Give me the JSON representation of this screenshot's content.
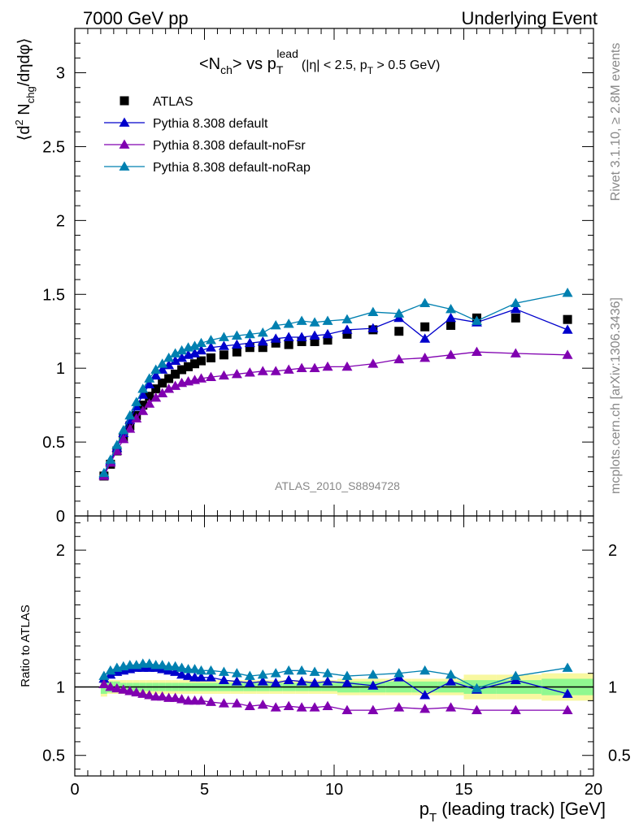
{
  "header": {
    "left": "7000 GeV pp",
    "right": "Underlying Event"
  },
  "side": {
    "rivet": "Rivet 3.1.10, ≥ 2.8M events",
    "mcplots": "mcplots.cern.ch [arXiv:1306.3436]"
  },
  "plot": {
    "title_main": "<N",
    "title_ch": "ch",
    "title_vs": "> vs p",
    "title_T": "T",
    "title_lead": "lead",
    "title_cuts": "(|η| < 2.5, p",
    "title_cuts_T": "T",
    "title_cuts_end": " > 0.5 GeV)",
    "analysis_tag": "ATLAS_2010_S8894728",
    "ylabel_parts": [
      "⟨d",
      "2",
      " N",
      "chg",
      "/dηdφ⟩"
    ],
    "ratio_ylabel": "Ratio to ATLAS",
    "xlabel_main": "p",
    "xlabel_sub": "T",
    "xlabel_rest": " (leading track) [GeV]"
  },
  "colors": {
    "atlas": "#000000",
    "default": "#0000cc",
    "noFsr": "#8000b0",
    "noRap": "#0080b0",
    "band_inner": "#90f890",
    "band_outer": "#f8f8a0"
  },
  "chart_data": {
    "type": "scatter",
    "xlim": [
      0,
      20
    ],
    "ylim": [
      0,
      3.3
    ],
    "ratio_ylim": [
      0.35,
      2.25
    ],
    "x_ticks": [
      "0",
      "5",
      "10",
      "15",
      "20"
    ],
    "y_ticks": [
      "0",
      "0.5",
      "1",
      "1.5",
      "2",
      "2.5",
      "3"
    ],
    "ratio_ticks": [
      "0.5",
      "1",
      "2"
    ],
    "x": [
      1.125,
      1.375,
      1.625,
      1.875,
      2.125,
      2.375,
      2.625,
      2.875,
      3.125,
      3.375,
      3.625,
      3.875,
      4.125,
      4.375,
      4.625,
      4.875,
      5.25,
      5.75,
      6.25,
      6.75,
      7.25,
      7.75,
      8.25,
      8.75,
      9.25,
      9.75,
      10.5,
      11.5,
      12.5,
      13.5,
      14.5,
      15.5,
      17.0,
      19.0
    ],
    "series": [
      {
        "name": "ATLAS",
        "key": "atlas",
        "marker": "square",
        "values": [
          0.27,
          0.35,
          0.44,
          0.53,
          0.61,
          0.68,
          0.75,
          0.81,
          0.86,
          0.9,
          0.93,
          0.96,
          0.99,
          1.01,
          1.03,
          1.05,
          1.07,
          1.09,
          1.11,
          1.14,
          1.14,
          1.17,
          1.16,
          1.18,
          1.18,
          1.19,
          1.23,
          1.26,
          1.25,
          1.28,
          1.29,
          1.34,
          1.34,
          1.33
        ]
      },
      {
        "name": "Pythia 8.308 default",
        "key": "default",
        "marker": "triangle",
        "values": [
          0.28,
          0.37,
          0.46,
          0.56,
          0.65,
          0.74,
          0.82,
          0.89,
          0.95,
          0.99,
          1.02,
          1.05,
          1.07,
          1.09,
          1.1,
          1.12,
          1.14,
          1.15,
          1.16,
          1.17,
          1.18,
          1.2,
          1.21,
          1.21,
          1.22,
          1.23,
          1.26,
          1.27,
          1.34,
          1.2,
          1.34,
          1.31,
          1.4,
          1.26
        ]
      },
      {
        "name": "Pythia 8.308 default-noFsr",
        "key": "noFsr",
        "marker": "triangle",
        "values": [
          0.27,
          0.36,
          0.44,
          0.52,
          0.59,
          0.66,
          0.71,
          0.76,
          0.8,
          0.83,
          0.86,
          0.88,
          0.9,
          0.91,
          0.92,
          0.93,
          0.94,
          0.95,
          0.96,
          0.97,
          0.98,
          0.98,
          0.99,
          1.0,
          1.0,
          1.01,
          1.01,
          1.03,
          1.06,
          1.07,
          1.09,
          1.11,
          1.1,
          1.09
        ]
      },
      {
        "name": "Pythia 8.308 default-noRap",
        "key": "noRap",
        "marker": "triangle",
        "values": [
          0.29,
          0.38,
          0.48,
          0.58,
          0.68,
          0.77,
          0.86,
          0.93,
          0.99,
          1.03,
          1.07,
          1.1,
          1.12,
          1.14,
          1.15,
          1.17,
          1.19,
          1.21,
          1.22,
          1.23,
          1.24,
          1.29,
          1.3,
          1.32,
          1.31,
          1.32,
          1.33,
          1.38,
          1.37,
          1.44,
          1.4,
          1.32,
          1.44,
          1.51
        ]
      }
    ],
    "ratio_series": [
      {
        "key": "default",
        "values": [
          1.06,
          1.09,
          1.11,
          1.12,
          1.13,
          1.14,
          1.14,
          1.14,
          1.14,
          1.13,
          1.12,
          1.11,
          1.09,
          1.08,
          1.07,
          1.07,
          1.07,
          1.05,
          1.04,
          1.03,
          1.04,
          1.03,
          1.05,
          1.04,
          1.03,
          1.04,
          1.03,
          1.01,
          1.07,
          0.94,
          1.04,
          0.98,
          1.05,
          0.95
        ]
      },
      {
        "key": "noFsr",
        "values": [
          1.02,
          1.0,
          0.99,
          0.98,
          0.97,
          0.96,
          0.95,
          0.94,
          0.93,
          0.93,
          0.92,
          0.92,
          0.91,
          0.9,
          0.9,
          0.9,
          0.89,
          0.88,
          0.88,
          0.86,
          0.87,
          0.85,
          0.86,
          0.85,
          0.85,
          0.86,
          0.83,
          0.83,
          0.85,
          0.84,
          0.85,
          0.83,
          0.83,
          0.83
        ]
      },
      {
        "key": "noRap",
        "values": [
          1.08,
          1.12,
          1.14,
          1.15,
          1.16,
          1.16,
          1.17,
          1.17,
          1.16,
          1.16,
          1.15,
          1.15,
          1.14,
          1.13,
          1.13,
          1.12,
          1.12,
          1.11,
          1.1,
          1.08,
          1.09,
          1.1,
          1.12,
          1.12,
          1.11,
          1.1,
          1.08,
          1.09,
          1.1,
          1.12,
          1.09,
          0.99,
          1.08,
          1.14
        ]
      }
    ],
    "band_inner": [
      0.05,
      0.04,
      0.04,
      0.03,
      0.03,
      0.03,
      0.03,
      0.03,
      0.03,
      0.03,
      0.03,
      0.03,
      0.03,
      0.03,
      0.03,
      0.03,
      0.03,
      0.03,
      0.03,
      0.03,
      0.03,
      0.03,
      0.03,
      0.03,
      0.03,
      0.03,
      0.04,
      0.04,
      0.04,
      0.04,
      0.04,
      0.05,
      0.05,
      0.06
    ],
    "band_outer": [
      0.07,
      0.05,
      0.05,
      0.05,
      0.05,
      0.05,
      0.05,
      0.05,
      0.05,
      0.05,
      0.05,
      0.05,
      0.05,
      0.05,
      0.05,
      0.05,
      0.05,
      0.05,
      0.05,
      0.05,
      0.05,
      0.05,
      0.05,
      0.05,
      0.05,
      0.05,
      0.06,
      0.06,
      0.06,
      0.06,
      0.06,
      0.09,
      0.09,
      0.1
    ]
  }
}
